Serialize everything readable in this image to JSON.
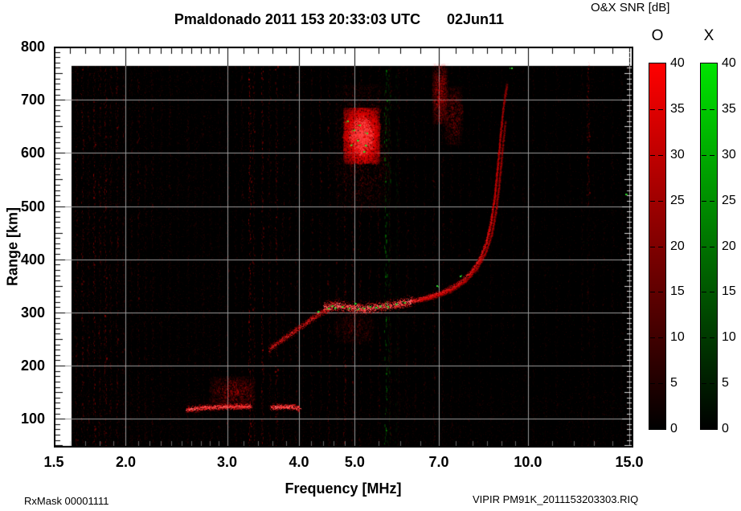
{
  "header": {
    "title": "Pmaldonado 2011 153 20:33:03 UTC",
    "date": "02Jun11"
  },
  "footer": {
    "rx_mask": "RxMask 00001111",
    "source_file": "VIPIR  PM91K_2011153203303.RIQ"
  },
  "chart_data": {
    "type": "heatmap",
    "description": "VIPIR ionogram: O-mode (red) and X-mode (green) echo SNR versus sounding frequency and virtual range",
    "title": "Pmaldonado 2011 153 20:33:03 UTC",
    "date_label": "02Jun11",
    "xlabel": "Frequency [MHz]",
    "ylabel": "Range [km]",
    "x_scale": "log",
    "xlim": [
      1.5,
      15.0
    ],
    "ylim": [
      46,
      800
    ],
    "grid": true,
    "x_ticks": [
      1.5,
      2.0,
      3.0,
      4.0,
      5.0,
      7.0,
      10.0,
      15.0
    ],
    "x_tick_labels": [
      "1.5",
      "2.0",
      "3.0",
      "4.0",
      "5.0",
      "7.0",
      "10.0",
      "15.0"
    ],
    "x_minor_ticks": [
      1.6,
      1.7,
      1.8,
      1.9,
      2.1,
      2.2,
      2.3,
      2.4,
      2.5,
      2.6,
      2.7,
      2.8,
      2.9,
      3.2,
      3.4,
      3.6,
      3.8,
      4.2,
      4.4,
      4.6,
      4.8,
      5.5,
      6.0,
      6.5,
      7.5,
      8.0,
      8.5,
      9.0,
      9.5,
      11.0,
      12.0,
      13.0,
      14.0
    ],
    "y_ticks": [
      100,
      200,
      300,
      400,
      500,
      600,
      700,
      800
    ],
    "y_minor_step": 10,
    "data_extent": {
      "f_min": 1.61,
      "f_max": 15.0,
      "range_min": 46,
      "range_max": 764
    },
    "colorbar": {
      "title": "O&X SNR [dB]",
      "units": "dB",
      "min": 0,
      "max": 40,
      "ticks": [
        40,
        35,
        30,
        25,
        20,
        15,
        10,
        5,
        0
      ],
      "bars": [
        {
          "label": "O",
          "color_top": "#ff0000",
          "color_bottom": "#000000"
        },
        {
          "label": "X",
          "color_top": "#00e400",
          "color_bottom": "#000000"
        }
      ]
    },
    "echo_traces": [
      {
        "name": "E-layer-segment-1",
        "points": [
          [
            2.55,
            117
          ],
          [
            2.75,
            121
          ],
          [
            2.95,
            122
          ],
          [
            3.12,
            123
          ],
          [
            3.3,
            123
          ]
        ],
        "width_km": 5,
        "intensity": 0.9
      },
      {
        "name": "E-layer-segment-2",
        "points": [
          [
            3.58,
            121
          ],
          [
            3.72,
            122
          ],
          [
            3.85,
            122
          ],
          [
            3.95,
            121
          ],
          [
            4.02,
            118
          ]
        ],
        "width_km": 5,
        "intensity": 1.0
      },
      {
        "name": "F-rising-branch",
        "points": [
          [
            3.55,
            231
          ],
          [
            3.75,
            249
          ],
          [
            3.95,
            266
          ],
          [
            4.15,
            283
          ],
          [
            4.35,
            298
          ],
          [
            4.52,
            307
          ]
        ],
        "width_km": 6,
        "intensity": 0.6
      },
      {
        "name": "F-main-trace",
        "points": [
          [
            4.42,
            309
          ],
          [
            4.68,
            313
          ],
          [
            4.95,
            308
          ],
          [
            5.2,
            307
          ],
          [
            5.45,
            309
          ],
          [
            5.7,
            312
          ],
          [
            6.0,
            316
          ],
          [
            6.3,
            321
          ]
        ],
        "width_km": 9,
        "intensity": 1.0
      },
      {
        "name": "F-cusp-inner",
        "points": [
          [
            6.3,
            321
          ],
          [
            6.75,
            329
          ],
          [
            7.2,
            340
          ],
          [
            7.6,
            354
          ],
          [
            7.95,
            374
          ],
          [
            8.25,
            400
          ],
          [
            8.48,
            434
          ],
          [
            8.64,
            474
          ],
          [
            8.76,
            520
          ],
          [
            8.85,
            568
          ],
          [
            8.93,
            614
          ],
          [
            9.0,
            655
          ],
          [
            9.1,
            700
          ],
          [
            9.2,
            730
          ]
        ],
        "width_km": 5,
        "intensity": 0.75,
        "fade_end": 0.3
      },
      {
        "name": "F-cusp-outer",
        "points": [
          [
            6.5,
            323
          ],
          [
            6.95,
            331
          ],
          [
            7.4,
            343
          ],
          [
            7.8,
            359
          ],
          [
            8.15,
            382
          ],
          [
            8.45,
            412
          ],
          [
            8.66,
            448
          ],
          [
            8.8,
            490
          ],
          [
            8.9,
            534
          ],
          [
            8.98,
            578
          ],
          [
            9.06,
            620
          ],
          [
            9.14,
            658
          ]
        ],
        "width_km": 4,
        "intensity": 0.45,
        "fade_end": 0.4
      }
    ],
    "echo_patches": [
      {
        "name": "E-diffuse-top",
        "f_range": [
          2.8,
          3.35
        ],
        "km_range": [
          122,
          180
        ],
        "intensity": 0.28,
        "n": 2200
      },
      {
        "name": "second-hop-F-core",
        "f_range": [
          4.78,
          5.52
        ],
        "km_range": [
          580,
          685
        ],
        "intensity": 1.0,
        "n": 9000,
        "bright": true
      },
      {
        "name": "second-hop-F-halo",
        "f_range": [
          4.6,
          5.75
        ],
        "km_range": [
          490,
          730
        ],
        "intensity": 0.26,
        "n": 3200
      },
      {
        "name": "under-F-smear",
        "f_range": [
          4.6,
          5.4
        ],
        "km_range": [
          240,
          300
        ],
        "intensity": 0.16,
        "n": 1200
      },
      {
        "name": "top-spread-streaks-1",
        "f_range": [
          6.82,
          7.25
        ],
        "km_range": [
          655,
          768
        ],
        "intensity": 0.32,
        "n": 2200
      },
      {
        "name": "top-spread-streaks-2",
        "f_range": [
          7.15,
          7.7
        ],
        "km_range": [
          615,
          725
        ],
        "intensity": 0.25,
        "n": 1500
      }
    ],
    "noise_stripes": [
      {
        "f": 1.64,
        "i": 0.25
      },
      {
        "f": 1.68,
        "i": 0.45
      },
      {
        "f": 1.72,
        "i": 0.3
      },
      {
        "f": 1.76,
        "i": 0.5
      },
      {
        "f": 1.8,
        "i": 0.35
      },
      {
        "f": 1.84,
        "i": 0.55
      },
      {
        "f": 1.88,
        "i": 0.3
      },
      {
        "f": 1.93,
        "i": 0.4
      },
      {
        "f": 1.98,
        "i": 0.25
      },
      {
        "f": 2.04,
        "i": 0.2
      },
      {
        "f": 2.1,
        "i": 0.3
      },
      {
        "f": 2.16,
        "i": 0.2
      },
      {
        "f": 2.22,
        "i": 0.25
      },
      {
        "f": 2.3,
        "i": 0.15
      },
      {
        "f": 2.38,
        "i": 0.18
      },
      {
        "f": 2.46,
        "i": 0.12
      },
      {
        "f": 2.56,
        "i": 0.15
      },
      {
        "f": 2.64,
        "i": 0.12
      },
      {
        "f": 2.72,
        "i": 0.15
      },
      {
        "f": 2.8,
        "i": 0.12
      },
      {
        "f": 2.9,
        "i": 0.15
      },
      {
        "f": 3.0,
        "i": 0.2
      },
      {
        "f": 3.1,
        "i": 0.15
      },
      {
        "f": 3.18,
        "i": 0.2
      },
      {
        "f": 3.28,
        "i": 0.7
      },
      {
        "f": 3.33,
        "i": 0.4
      },
      {
        "f": 3.45,
        "i": 0.55
      },
      {
        "f": 3.55,
        "i": 0.3
      },
      {
        "f": 3.65,
        "i": 0.5
      },
      {
        "f": 3.75,
        "i": 0.25
      },
      {
        "f": 3.85,
        "i": 0.2
      },
      {
        "f": 3.95,
        "i": 0.25
      },
      {
        "f": 4.05,
        "i": 0.15
      },
      {
        "f": 4.2,
        "i": 0.2
      },
      {
        "f": 4.35,
        "i": 0.25
      },
      {
        "f": 4.5,
        "i": 0.3
      },
      {
        "f": 4.65,
        "i": 0.25
      },
      {
        "f": 4.8,
        "i": 0.35
      },
      {
        "f": 4.95,
        "i": 0.3
      },
      {
        "f": 5.1,
        "i": 0.25
      },
      {
        "f": 5.3,
        "i": 0.2
      },
      {
        "f": 5.5,
        "i": 0.25
      },
      {
        "f": 5.75,
        "i": 0.2
      },
      {
        "f": 5.95,
        "i": 0.18
      },
      {
        "f": 6.15,
        "i": 0.2
      },
      {
        "f": 6.35,
        "i": 0.18
      },
      {
        "f": 6.6,
        "i": 0.15
      },
      {
        "f": 6.85,
        "i": 0.2
      },
      {
        "f": 7.1,
        "i": 0.18
      },
      {
        "f": 7.35,
        "i": 0.15
      },
      {
        "f": 7.6,
        "i": 0.12
      },
      {
        "f": 7.9,
        "i": 0.12
      },
      {
        "f": 8.2,
        "i": 0.1
      },
      {
        "f": 8.6,
        "i": 0.1
      },
      {
        "f": 9.0,
        "i": 0.1
      },
      {
        "f": 9.4,
        "i": 0.12
      },
      {
        "f": 9.8,
        "i": 0.1
      },
      {
        "f": 10.2,
        "i": 0.12
      },
      {
        "f": 10.7,
        "i": 0.1
      },
      {
        "f": 11.2,
        "i": 0.12
      },
      {
        "f": 11.8,
        "i": 0.1
      },
      {
        "f": 12.4,
        "i": 0.15
      },
      {
        "f": 12.7,
        "i": 0.55,
        "km": [
          500,
          770
        ]
      },
      {
        "f": 12.7,
        "i": 0.15
      },
      {
        "f": 13.0,
        "i": 0.12
      },
      {
        "f": 13.5,
        "i": 0.1
      },
      {
        "f": 14.0,
        "i": 0.12
      },
      {
        "f": 14.5,
        "i": 0.1
      },
      {
        "f": 14.9,
        "i": 0.12
      }
    ],
    "green_rfi_columns": [
      {
        "f": 5.65,
        "intensity": 0.55
      },
      {
        "f": 5.73,
        "intensity": 0.22
      },
      {
        "f": 5.9,
        "intensity": 0.1
      }
    ],
    "green_specks": [
      [
        4.3,
        300
      ],
      [
        4.52,
        306
      ],
      [
        4.56,
        313
      ],
      [
        4.63,
        309
      ],
      [
        4.76,
        311
      ],
      [
        4.9,
        307
      ],
      [
        5.0,
        317
      ],
      [
        5.08,
        308
      ],
      [
        5.18,
        310
      ],
      [
        5.3,
        312
      ],
      [
        5.42,
        309
      ],
      [
        5.55,
        313
      ],
      [
        5.68,
        311
      ],
      [
        5.9,
        316
      ],
      [
        6.1,
        318
      ],
      [
        4.9,
        616
      ],
      [
        4.97,
        641
      ],
      [
        5.05,
        626
      ],
      [
        5.12,
        651
      ],
      [
        5.2,
        613
      ],
      [
        5.27,
        639
      ],
      [
        4.84,
        661
      ],
      [
        5.16,
        601
      ],
      [
        6.95,
        352
      ],
      [
        7.62,
        371
      ],
      [
        9.35,
        758
      ],
      [
        14.8,
        520
      ]
    ]
  }
}
